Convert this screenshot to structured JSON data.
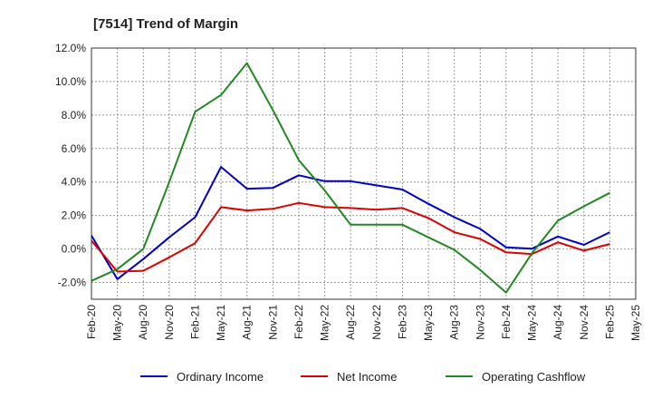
{
  "chart_data": {
    "type": "line",
    "title": "[7514]  Trend of Margin",
    "xlabel": "",
    "ylabel": "",
    "x": [
      "Feb-20",
      "May-20",
      "Aug-20",
      "Nov-20",
      "Feb-21",
      "May-21",
      "Aug-21",
      "Nov-21",
      "Feb-22",
      "May-22",
      "Aug-22",
      "Nov-22",
      "Feb-23",
      "May-23",
      "Aug-23",
      "Nov-23",
      "Feb-24",
      "May-24",
      "Aug-24",
      "Nov-24",
      "Feb-25",
      "May-25"
    ],
    "ylim": [
      -3.0,
      12.0
    ],
    "yticks": [
      -2.0,
      0.0,
      2.0,
      4.0,
      6.0,
      8.0,
      10.0,
      12.0
    ],
    "ytick_labels": [
      "-2.0%",
      "0.0%",
      "2.0%",
      "4.0%",
      "6.0%",
      "8.0%",
      "10.0%",
      "12.0%"
    ],
    "grid": true,
    "legend_position": "bottom",
    "series": [
      {
        "name": "Ordinary Income",
        "color": "#0000cc",
        "values": [
          0.8,
          -1.8,
          -0.6,
          0.7,
          1.9,
          4.9,
          3.6,
          3.65,
          4.4,
          4.05,
          4.05,
          3.8,
          3.55,
          2.7,
          1.9,
          1.2,
          0.1,
          0.02,
          0.75,
          0.25,
          1.0,
          null
        ]
      },
      {
        "name": "Net Income",
        "color": "#dd0000",
        "values": [
          0.5,
          -1.35,
          -1.3,
          -0.5,
          0.35,
          2.5,
          2.3,
          2.4,
          2.75,
          2.5,
          2.45,
          2.35,
          2.45,
          1.85,
          1.0,
          0.6,
          -0.2,
          -0.3,
          0.4,
          -0.1,
          0.3,
          null
        ]
      },
      {
        "name": "Operating Cashflow",
        "color": "#228822",
        "values": [
          -1.9,
          -1.2,
          0.0,
          4.0,
          8.2,
          9.2,
          11.1,
          8.3,
          5.3,
          3.5,
          1.45,
          1.45,
          1.45,
          0.7,
          -0.05,
          -1.25,
          -2.6,
          -0.25,
          1.7,
          2.55,
          3.35,
          null
        ]
      }
    ]
  }
}
